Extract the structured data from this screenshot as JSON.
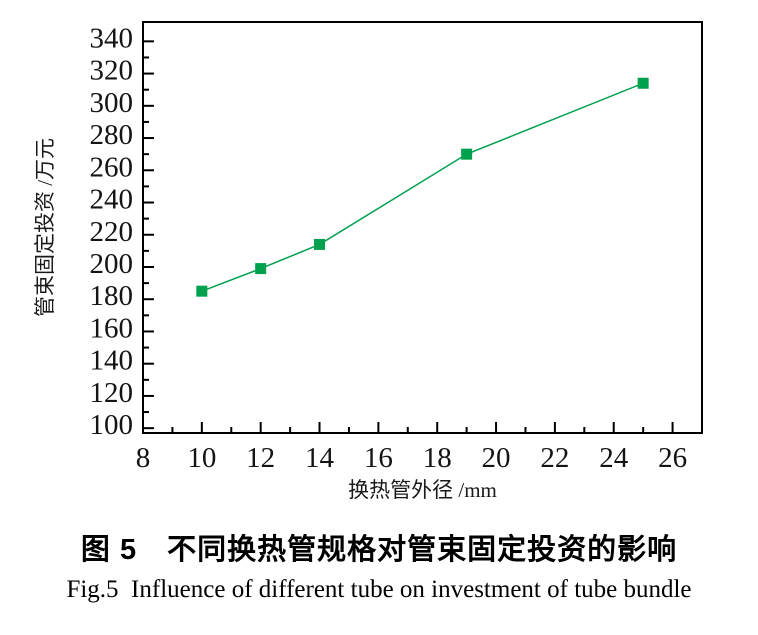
{
  "chart_data": {
    "type": "line",
    "title": "",
    "xlabel": "换热管外径 /mm",
    "ylabel": "管束固定投资 /万元",
    "series": [
      {
        "name": "管束固定投资",
        "x": [
          10,
          12,
          14,
          19,
          25
        ],
        "y": [
          185,
          199,
          214,
          270,
          314
        ]
      }
    ],
    "xlim": [
      8,
      27
    ],
    "ylim": [
      97,
      352
    ],
    "x_major_ticks": [
      8,
      10,
      12,
      14,
      16,
      18,
      20,
      22,
      24,
      26
    ],
    "x_minor_ticks": [
      9,
      11,
      13,
      15,
      17,
      19,
      21,
      23,
      25
    ],
    "y_major_ticks": [
      100,
      120,
      140,
      160,
      180,
      200,
      220,
      240,
      260,
      280,
      300,
      320,
      340
    ],
    "y_minor_ticks": [
      110,
      130,
      150,
      170,
      190,
      210,
      230,
      250,
      270,
      290,
      310,
      330
    ],
    "grid": false,
    "legend": "none",
    "line_color": "#00a14e",
    "frame_color": "#000000",
    "marker": "square",
    "marker_size": 11
  },
  "captions": {
    "chinese": "图 5　不同换热管规格对管束固定投资的影响",
    "english": "Fig.5  Influence of different tube on investment of tube bundle"
  }
}
